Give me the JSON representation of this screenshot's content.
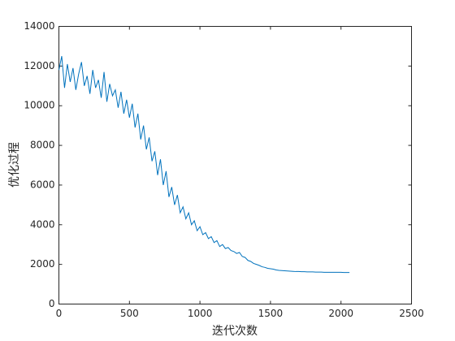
{
  "chart_data": {
    "type": "line",
    "xlabel": "迭代次数",
    "ylabel": "优化过程",
    "xlim": [
      0,
      2500
    ],
    "xticks": [
      0,
      500,
      1000,
      1500,
      2000,
      2500
    ],
    "ylim": [
      0,
      14000
    ],
    "yticks": [
      0,
      2000,
      4000,
      6000,
      8000,
      10000,
      12000,
      14000
    ],
    "grid": false,
    "x": [
      0,
      20,
      40,
      60,
      80,
      100,
      120,
      140,
      160,
      180,
      200,
      220,
      240,
      260,
      280,
      300,
      320,
      340,
      360,
      380,
      400,
      420,
      440,
      460,
      480,
      500,
      520,
      540,
      560,
      580,
      600,
      620,
      640,
      660,
      680,
      700,
      720,
      740,
      760,
      780,
      800,
      820,
      840,
      860,
      880,
      900,
      920,
      940,
      960,
      980,
      1000,
      1020,
      1040,
      1060,
      1080,
      1100,
      1120,
      1140,
      1160,
      1180,
      1200,
      1220,
      1240,
      1260,
      1280,
      1300,
      1320,
      1340,
      1360,
      1380,
      1400,
      1420,
      1440,
      1460,
      1480,
      1500,
      1520,
      1540,
      1560,
      1580,
      1600,
      1620,
      1640,
      1660,
      1680,
      1700,
      1720,
      1740,
      1760,
      1780,
      1800,
      1820,
      1840,
      1860,
      1880,
      1900,
      1920,
      1940,
      1960,
      1980,
      2000,
      2020,
      2040,
      2060
    ],
    "series": [
      {
        "color": "#0072BD",
        "values": [
          11800,
          12500,
          10900,
          12100,
          11200,
          11900,
          10800,
          11600,
          12200,
          11000,
          11500,
          10600,
          11800,
          10900,
          11300,
          10400,
          11700,
          10200,
          11100,
          10500,
          10800,
          9900,
          10700,
          9600,
          10300,
          9400,
          10100,
          8900,
          9600,
          8300,
          9000,
          7800,
          8400,
          7200,
          7700,
          6500,
          7300,
          6000,
          6700,
          5400,
          5900,
          5000,
          5500,
          4600,
          4900,
          4300,
          4600,
          4000,
          4200,
          3700,
          3900,
          3500,
          3600,
          3300,
          3400,
          3100,
          3200,
          2900,
          3000,
          2800,
          2850,
          2700,
          2650,
          2550,
          2600,
          2400,
          2350,
          2200,
          2150,
          2050,
          2000,
          1950,
          1880,
          1850,
          1800,
          1780,
          1760,
          1720,
          1700,
          1690,
          1680,
          1670,
          1660,
          1650,
          1640,
          1640,
          1630,
          1630,
          1620,
          1620,
          1620,
          1610,
          1610,
          1610,
          1600,
          1600,
          1600,
          1600,
          1600,
          1600,
          1600,
          1590,
          1590,
          1590
        ]
      }
    ]
  }
}
